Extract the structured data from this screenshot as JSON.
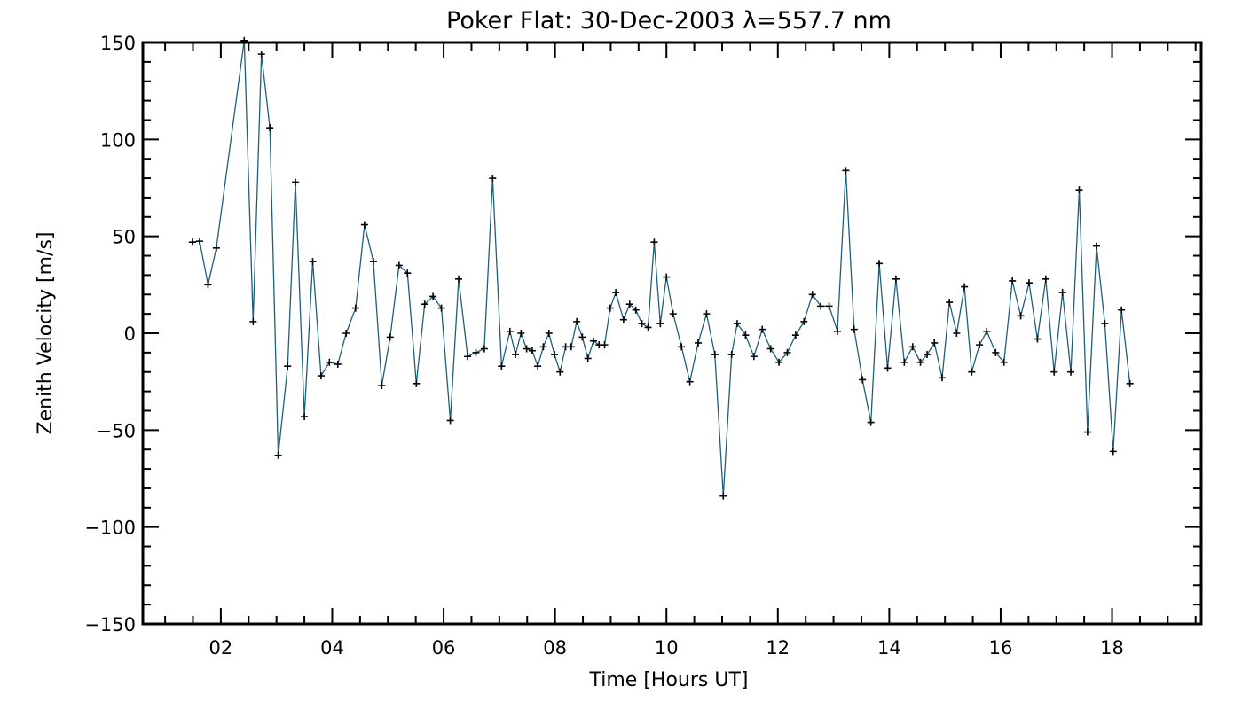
{
  "chart_data": {
    "type": "line",
    "title": "Poker Flat: 30-Dec-2003 λ=557.7 nm",
    "xlabel": "Time [Hours UT]",
    "ylabel": "Zenith Velocity [m/s]",
    "xlim": [
      0.6,
      19.6
    ],
    "ylim": [
      -150,
      150
    ],
    "x_ticks": [
      {
        "value": 2,
        "label": "02"
      },
      {
        "value": 4,
        "label": "04"
      },
      {
        "value": 6,
        "label": "06"
      },
      {
        "value": 8,
        "label": "08"
      },
      {
        "value": 10,
        "label": "10"
      },
      {
        "value": 12,
        "label": "12"
      },
      {
        "value": 14,
        "label": "14"
      },
      {
        "value": 16,
        "label": "16"
      },
      {
        "value": 18,
        "label": "18"
      }
    ],
    "y_ticks": [
      {
        "value": 150,
        "label": "150"
      },
      {
        "value": 100,
        "label": "100"
      },
      {
        "value": 50,
        "label": "50"
      },
      {
        "value": 0,
        "label": "0"
      },
      {
        "value": -50,
        "label": "−50"
      },
      {
        "value": -100,
        "label": "−100"
      },
      {
        "value": -150,
        "label": "−150"
      }
    ],
    "grid": false,
    "line_color": "#1f5f7a",
    "marker": "+",
    "series": [
      {
        "name": "Zenith Velocity",
        "x": [
          1.49,
          1.62,
          1.77,
          1.92,
          2.42,
          2.58,
          2.73,
          2.88,
          3.03,
          3.2,
          3.34,
          3.5,
          3.65,
          3.8,
          3.95,
          4.1,
          4.25,
          4.42,
          4.58,
          4.74,
          4.89,
          5.04,
          5.2,
          5.35,
          5.51,
          5.66,
          5.81,
          5.96,
          6.12,
          6.27,
          6.43,
          6.58,
          6.73,
          6.88,
          7.04,
          7.19,
          7.29,
          7.39,
          7.49,
          7.59,
          7.69,
          7.79,
          7.89,
          7.99,
          8.09,
          8.19,
          8.29,
          8.39,
          8.49,
          8.59,
          8.69,
          8.79,
          8.89,
          8.99,
          9.09,
          9.23,
          9.34,
          9.45,
          9.56,
          9.67,
          9.78,
          9.89,
          10.0,
          10.12,
          10.27,
          10.42,
          10.57,
          10.72,
          10.87,
          11.02,
          11.17,
          11.27,
          11.42,
          11.57,
          11.72,
          11.87,
          12.02,
          12.17,
          12.32,
          12.47,
          12.62,
          12.77,
          12.92,
          13.07,
          13.22,
          13.37,
          13.52,
          13.67,
          13.82,
          13.97,
          14.12,
          14.27,
          14.42,
          14.56,
          14.68,
          14.81,
          14.95,
          15.08,
          15.21,
          15.35,
          15.48,
          15.62,
          15.75,
          15.91,
          16.06,
          16.21,
          16.36,
          16.51,
          16.66,
          16.81,
          16.96,
          17.11,
          17.26,
          17.41,
          17.56,
          17.72,
          17.87,
          18.02,
          18.17,
          18.32
        ],
        "values": [
          47,
          47.5,
          25,
          44,
          151,
          6,
          144,
          106,
          -63,
          -17,
          78,
          -43,
          37,
          -22,
          -15,
          -16,
          0,
          13,
          56,
          37,
          -27,
          -2,
          35,
          31,
          -26,
          15,
          19,
          13,
          -45,
          28,
          -12,
          -10,
          -8,
          80,
          -17,
          1,
          -11,
          0,
          -8,
          -9,
          -17,
          -7,
          0,
          -11,
          -20,
          -7,
          -7,
          6,
          -2,
          -13,
          -4,
          -6,
          -6,
          13,
          21,
          7,
          15,
          12,
          5,
          3,
          47,
          5,
          29,
          10,
          -7,
          -25,
          -5,
          10,
          -11,
          -84,
          -11,
          5,
          -1,
          -12,
          2,
          -8,
          -15,
          -10,
          -1,
          6,
          20,
          14,
          14,
          1,
          84,
          2,
          -24,
          -46,
          36,
          -18,
          28,
          -15,
          -7,
          -15,
          -11,
          -5,
          -23,
          16,
          0,
          24,
          -20,
          -6,
          1,
          -10,
          -15,
          27,
          9,
          26,
          -3,
          28,
          -20,
          21,
          -20,
          74,
          -51,
          45,
          5,
          -61,
          12,
          -26
        ]
      }
    ]
  }
}
